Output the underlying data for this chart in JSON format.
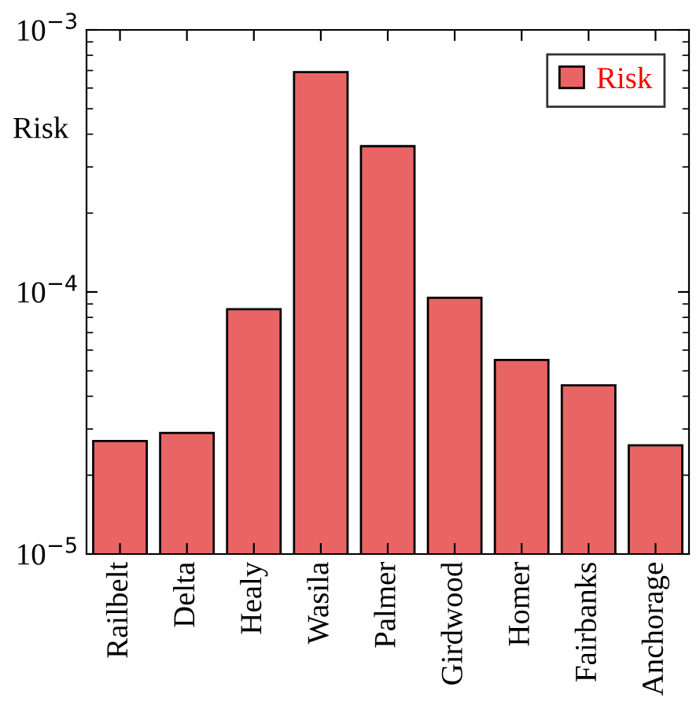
{
  "chart_data": {
    "type": "bar",
    "ylabel": "Risk",
    "categories": [
      "Railbelt",
      "Delta",
      "Healy",
      "Wasila",
      "Palmer",
      "Girdwood",
      "Homer",
      "Fairbanks",
      "Anchorage"
    ],
    "series": [
      {
        "name": "Risk",
        "color": "#e96565",
        "values": [
          2.7e-05,
          2.9e-05,
          8.6e-05,
          0.00069,
          0.00036,
          9.5e-05,
          5.5e-05,
          4.4e-05,
          2.6e-05
        ]
      }
    ],
    "log": true,
    "ylim": [
      1e-05,
      0.001
    ],
    "yticks": [
      {
        "value": 1e-05,
        "label": "10$^{−5}$"
      },
      {
        "value": 0.0001,
        "label": "10$^{−4}$"
      },
      {
        "value": 0.001,
        "label": "10$^{−3}$"
      }
    ],
    "legend": "top right",
    "grid": false
  }
}
